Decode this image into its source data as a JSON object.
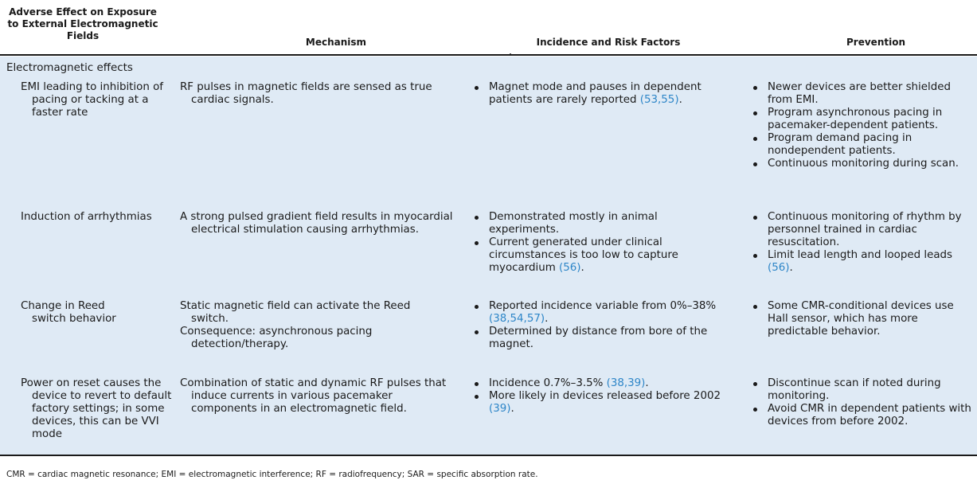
{
  "headers": {
    "col1": "Adverse Effect on Exposure to External Electromagnetic Fields",
    "col2": "Mechanism",
    "col3": "Incidence and Risk Factors",
    "col4": "Prevention"
  },
  "section_label": "Electromagnetic effects",
  "rows": [
    {
      "effect": "EMI leading to inhibition of pacing or tacking at a faster rate",
      "mechanism": [
        "RF pulses in magnetic fields are sensed as true cardiac signals."
      ],
      "incidence": [
        {
          "text": "Magnet mode and pauses in dependent patients are rarely reported ",
          "ref": "(53,55)",
          "tail": "."
        }
      ],
      "prevention": [
        {
          "text": "Newer devices are better shielded from EMI.",
          "ref": "",
          "tail": ""
        },
        {
          "text": "Program asynchronous pacing in pacemaker-dependent patients.",
          "ref": "",
          "tail": ""
        },
        {
          "text": "Program demand pacing in nondependent patients.",
          "ref": "",
          "tail": ""
        },
        {
          "text": "Continuous monitoring during scan.",
          "ref": "",
          "tail": ""
        }
      ]
    },
    {
      "effect": "Induction of arrhythmias",
      "mechanism": [
        "A strong pulsed gradient field results in myocardial electrical stimulation causing arrhythmias."
      ],
      "incidence": [
        {
          "text": "Demonstrated mostly in animal experiments.",
          "ref": "",
          "tail": ""
        },
        {
          "text": "Current generated under clinical circumstances is too low to capture myocardium ",
          "ref": "(56)",
          "tail": "."
        }
      ],
      "prevention": [
        {
          "text": "Continuous monitoring of rhythm by personnel trained in cardiac resuscitation.",
          "ref": "",
          "tail": ""
        },
        {
          "text": "Limit lead length and looped leads ",
          "ref": "(56)",
          "tail": "."
        }
      ]
    },
    {
      "effect": "Change in Reed switch behavior",
      "mechanism": [
        "Static magnetic field can activate the Reed switch.",
        "Consequence: asynchronous pacing detection/therapy."
      ],
      "incidence": [
        {
          "text": "Reported incidence variable from 0%–38% ",
          "ref": "(38,54,57)",
          "tail": "."
        },
        {
          "text": "Determined by distance from bore of the magnet.",
          "ref": "",
          "tail": ""
        }
      ],
      "prevention": [
        {
          "text": "Some CMR-conditional devices use Hall sensor, which has more predictable behavior.",
          "ref": "",
          "tail": ""
        }
      ]
    },
    {
      "effect": "Power on reset causes the device to revert to default factory settings; in some devices, this can be VVI mode",
      "mechanism": [
        "Combination of static and dynamic RF pulses that induce currents in various pacemaker components in an electromagnetic field."
      ],
      "incidence": [
        {
          "text": "Incidence 0.7%–3.5% ",
          "ref": "(38,39)",
          "tail": "."
        },
        {
          "text": "More likely in devices released before 2002 ",
          "ref": "(39)",
          "tail": "."
        }
      ],
      "prevention": [
        {
          "text": "Discontinue scan if noted during monitoring.",
          "ref": "",
          "tail": ""
        },
        {
          "text": "Avoid CMR in dependent patients with devices from before 2002.",
          "ref": "",
          "tail": ""
        }
      ]
    }
  ],
  "footnote": "CMR = cardiac magnetic resonance; EMI = electromagnetic interference; RF = radiofrequency; SAR = specific absorption rate.",
  "colors": {
    "shade": "#dfeaf5",
    "ref": "#2e86c8",
    "rule": "#1a1a1a"
  }
}
